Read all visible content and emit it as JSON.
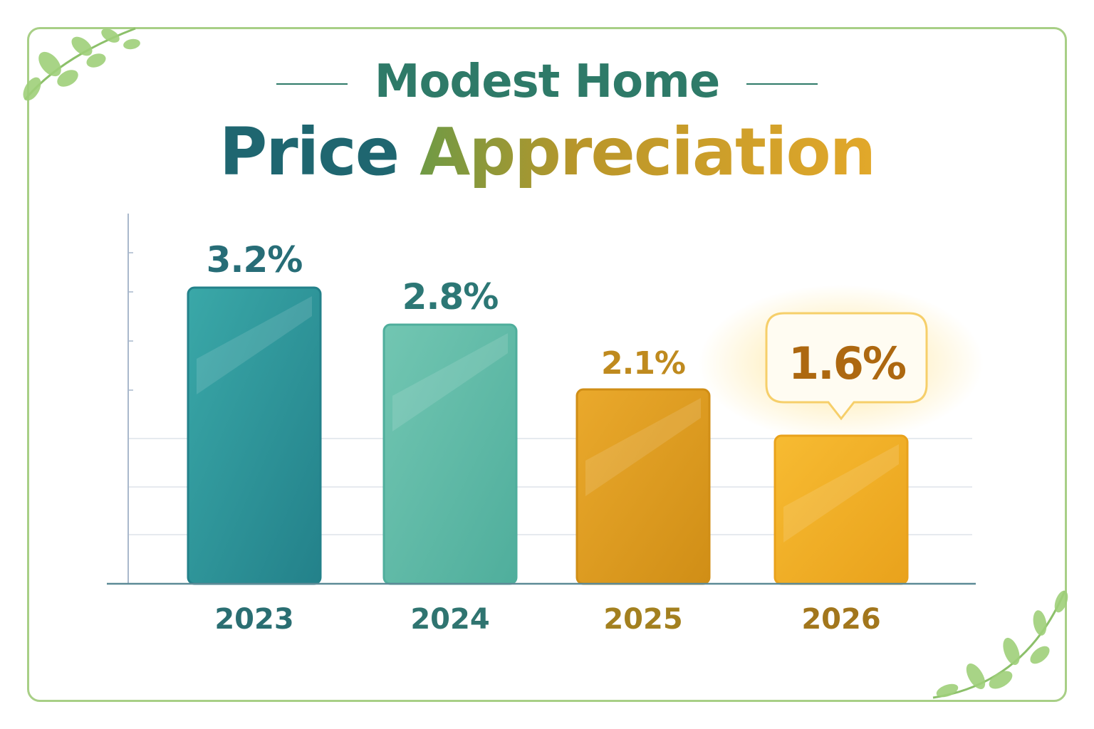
{
  "title": {
    "line1": "Modest Home",
    "line2_a": "Price",
    "line2_b": "Appreciation"
  },
  "chart_data": {
    "type": "bar",
    "title": "Modest Home Price Appreciation",
    "categories": [
      "2023",
      "2024",
      "2025",
      "2026"
    ],
    "values": [
      3.2,
      2.8,
      2.1,
      1.6
    ],
    "data_labels": [
      "3.2%",
      "2.8%",
      "2.1%",
      "1.6%"
    ],
    "unit": "%",
    "xlabel": "",
    "ylabel": "",
    "ylim": [
      0,
      4
    ],
    "grid": true,
    "y_tick_labels": false,
    "highlighted_category": "2026",
    "colors": {
      "bars": [
        "#3aa8a8",
        "#72c6b2",
        "#eaa92c",
        "#f7bb32"
      ],
      "bars_dark": [
        "#23818a",
        "#4fae9c",
        "#d08e16",
        "#e9a21c"
      ],
      "labels": [
        "#276d77",
        "#2c7775",
        "#bf8a1e",
        "#ad6810"
      ],
      "years": [
        "#2a6e72",
        "#2f7470",
        "#a3801f",
        "#a2761c"
      ],
      "frame": "#a8cf86",
      "axis": "#a9b8cc"
    }
  }
}
